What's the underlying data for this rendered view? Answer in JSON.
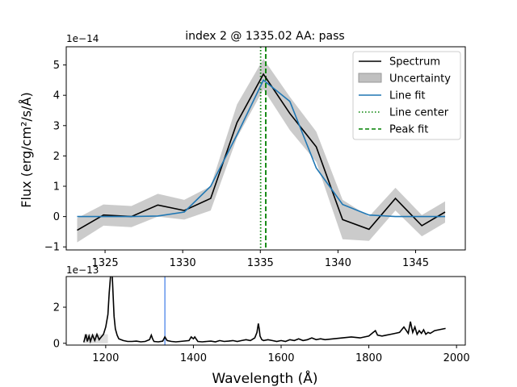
{
  "chart_data": [
    {
      "type": "line",
      "title": "index 2 @ 1335.02 AA: pass",
      "ylabel": "Flux (erg/cm²/s/Å)",
      "y_offset_text": "1e−14",
      "xlim": [
        1322.5,
        1348.2
      ],
      "ylim": [
        -1.1,
        5.6
      ],
      "xticks": [
        1325,
        1330,
        1335,
        1340,
        1345
      ],
      "yticks": [
        -1,
        0,
        1,
        2,
        3,
        4,
        5
      ],
      "x": [
        1323.2,
        1324.9,
        1326.7,
        1328.4,
        1330.1,
        1331.8,
        1333.5,
        1335.2,
        1336.9,
        1338.6,
        1340.3,
        1342.0,
        1343.7,
        1345.4,
        1346.9
      ],
      "series": [
        {
          "name": "Spectrum",
          "color": "#000000",
          "style": "solid",
          "values": [
            -0.45,
            0.05,
            0.0,
            0.38,
            0.2,
            0.6,
            3.1,
            4.7,
            3.4,
            2.3,
            -0.1,
            -0.42,
            0.6,
            -0.3,
            0.15
          ]
        },
        {
          "name": "Uncertainty",
          "color": "#b0b0b0",
          "style": "band",
          "lower": [
            -0.85,
            -0.3,
            -0.35,
            0.0,
            -0.1,
            0.2,
            2.6,
            4.2,
            2.85,
            1.8,
            -0.75,
            -0.8,
            0.2,
            -0.65,
            -0.2
          ],
          "upper": [
            -0.05,
            0.4,
            0.35,
            0.75,
            0.55,
            1.0,
            3.7,
            5.2,
            3.95,
            2.8,
            0.55,
            0.0,
            0.95,
            0.05,
            0.5
          ]
        },
        {
          "name": "Line fit",
          "color": "#1f77b4",
          "style": "solid",
          "values": [
            0.0,
            0.0,
            0.0,
            0.02,
            0.15,
            1.0,
            2.7,
            4.5,
            3.8,
            1.6,
            0.4,
            0.05,
            0.0,
            0.0,
            0.0
          ]
        }
      ],
      "vlines": [
        {
          "name": "Line center",
          "x": 1335.02,
          "color": "#008000",
          "style": "dotted"
        },
        {
          "name": "Peak fit",
          "x": 1335.35,
          "color": "#008000",
          "style": "dashed"
        }
      ],
      "legend": "top-right",
      "grid": false
    },
    {
      "type": "line",
      "xlabel": "Wavelength (Å)",
      "y_offset_text": "1e−13",
      "xlim": [
        1110,
        2020
      ],
      "ylim": [
        -0.1,
        3.7
      ],
      "xticks": [
        1200,
        1400,
        1600,
        1800,
        2000
      ],
      "yticks": [
        0,
        2
      ],
      "highlight_x": 1335.02,
      "highlight_color": "#6495ed",
      "series": [
        {
          "name": "",
          "color": "#000000",
          "x": [
            1150,
            1155,
            1158,
            1162,
            1165,
            1170,
            1175,
            1180,
            1185,
            1190,
            1195,
            1200,
            1205,
            1208,
            1211,
            1213,
            1215,
            1217,
            1219,
            1222,
            1226,
            1230,
            1240,
            1250,
            1260,
            1270,
            1280,
            1290,
            1300,
            1304,
            1307,
            1310,
            1320,
            1330,
            1335,
            1340,
            1350,
            1360,
            1370,
            1390,
            1395,
            1400,
            1403,
            1410,
            1420,
            1430,
            1440,
            1450,
            1460,
            1470,
            1480,
            1490,
            1500,
            1510,
            1520,
            1530,
            1540,
            1545,
            1548,
            1550,
            1552,
            1556,
            1560,
            1570,
            1580,
            1590,
            1600,
            1610,
            1620,
            1630,
            1640,
            1650,
            1660,
            1670,
            1680,
            1690,
            1700,
            1720,
            1740,
            1760,
            1780,
            1800,
            1810,
            1815,
            1820,
            1830,
            1840,
            1850,
            1860,
            1870,
            1880,
            1890,
            1895,
            1900,
            1905,
            1910,
            1915,
            1920,
            1925,
            1930,
            1935,
            1940,
            1950,
            1960,
            1970,
            1975
          ],
          "values": [
            0.05,
            0.5,
            0.1,
            0.4,
            0.1,
            0.45,
            0.15,
            0.5,
            0.2,
            0.35,
            0.5,
            0.9,
            1.6,
            2.8,
            3.7,
            3.9,
            3.7,
            2.6,
            1.5,
            0.8,
            0.45,
            0.25,
            0.15,
            0.1,
            0.1,
            0.12,
            0.08,
            0.1,
            0.2,
            0.45,
            0.25,
            0.1,
            0.08,
            0.12,
            0.35,
            0.15,
            0.1,
            0.08,
            0.1,
            0.15,
            0.35,
            0.25,
            0.35,
            0.1,
            0.08,
            0.1,
            0.12,
            0.08,
            0.15,
            0.1,
            0.12,
            0.15,
            0.1,
            0.15,
            0.2,
            0.15,
            0.3,
            0.6,
            1.1,
            0.8,
            0.4,
            0.2,
            0.15,
            0.2,
            0.15,
            0.1,
            0.15,
            0.1,
            0.2,
            0.15,
            0.25,
            0.15,
            0.2,
            0.3,
            0.2,
            0.25,
            0.2,
            0.25,
            0.3,
            0.35,
            0.3,
            0.4,
            0.6,
            0.7,
            0.45,
            0.4,
            0.45,
            0.5,
            0.55,
            0.6,
            0.9,
            0.55,
            1.2,
            0.6,
            0.9,
            0.5,
            0.7,
            0.55,
            0.75,
            0.5,
            0.6,
            0.55,
            0.7,
            0.75,
            0.8,
            0.82
          ]
        }
      ]
    }
  ]
}
